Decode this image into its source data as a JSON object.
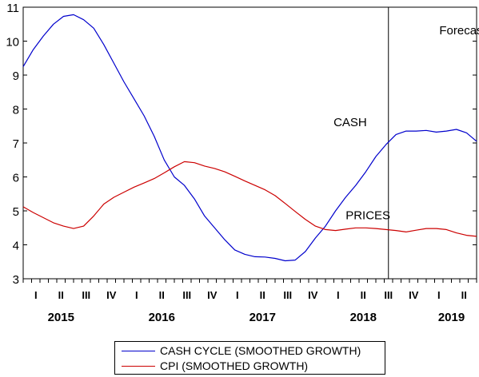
{
  "chart_data": {
    "type": "line",
    "ylim": [
      3,
      11
    ],
    "yticks": [
      3,
      4,
      5,
      6,
      7,
      8,
      9,
      10,
      11
    ],
    "x_range": [
      2015.0,
      2019.5
    ],
    "quarter_labels": [
      "I",
      "II",
      "III",
      "IV",
      "I",
      "II",
      "III",
      "IV",
      "I",
      "II",
      "III",
      "IV",
      "I",
      "II",
      "III",
      "IV",
      "I",
      "II"
    ],
    "year_labels": [
      {
        "label": "2015",
        "x": 2015.375
      },
      {
        "label": "2016",
        "x": 2016.375
      },
      {
        "label": "2017",
        "x": 2017.375
      },
      {
        "label": "2018",
        "x": 2018.375
      },
      {
        "label": "2019",
        "x": 2019.25
      }
    ],
    "forecast_start": 2018.625,
    "annotations": [
      {
        "text": "Forecast",
        "x": 2019.13,
        "y": 10.2
      },
      {
        "text": "CASH",
        "x": 2018.08,
        "y": 7.5
      },
      {
        "text": "PRICES",
        "x": 2018.2,
        "y": 4.75
      }
    ],
    "series": [
      {
        "name": "CASH CYCLE (SMOOTHED GROWTH)",
        "color": "#0000cc",
        "x": [
          2015.0,
          2015.1,
          2015.2,
          2015.3,
          2015.4,
          2015.5,
          2015.6,
          2015.7,
          2015.8,
          2015.9,
          2016.0,
          2016.1,
          2016.2,
          2016.3,
          2016.4,
          2016.5,
          2016.6,
          2016.7,
          2016.8,
          2016.9,
          2017.0,
          2017.1,
          2017.2,
          2017.3,
          2017.4,
          2017.5,
          2017.6,
          2017.7,
          2017.8,
          2017.9,
          2018.0,
          2018.1,
          2018.2,
          2018.3,
          2018.4,
          2018.5,
          2018.6,
          2018.7,
          2018.8,
          2018.9,
          2019.0,
          2019.1,
          2019.2,
          2019.3,
          2019.4,
          2019.5
        ],
        "values": [
          9.25,
          9.75,
          10.15,
          10.5,
          10.73,
          10.78,
          10.63,
          10.38,
          9.9,
          9.35,
          8.8,
          8.3,
          7.8,
          7.2,
          6.5,
          6.0,
          5.75,
          5.35,
          4.85,
          4.5,
          4.15,
          3.85,
          3.72,
          3.65,
          3.64,
          3.6,
          3.53,
          3.55,
          3.8,
          4.2,
          4.55,
          5.0,
          5.4,
          5.75,
          6.15,
          6.6,
          6.95,
          7.25,
          7.35,
          7.35,
          7.37,
          7.32,
          7.35,
          7.4,
          7.3,
          7.05
        ]
      },
      {
        "name": "CPI (SMOOTHED GROWTH)",
        "color": "#cc0000",
        "x": [
          2015.0,
          2015.1,
          2015.2,
          2015.3,
          2015.4,
          2015.5,
          2015.6,
          2015.7,
          2015.8,
          2015.9,
          2016.0,
          2016.1,
          2016.2,
          2016.3,
          2016.4,
          2016.5,
          2016.6,
          2016.7,
          2016.8,
          2016.9,
          2017.0,
          2017.1,
          2017.2,
          2017.3,
          2017.4,
          2017.5,
          2017.6,
          2017.7,
          2017.8,
          2017.9,
          2018.0,
          2018.1,
          2018.2,
          2018.3,
          2018.4,
          2018.5,
          2018.6,
          2018.7,
          2018.8,
          2018.9,
          2019.0,
          2019.1,
          2019.2,
          2019.3,
          2019.4,
          2019.5
        ],
        "values": [
          5.12,
          4.95,
          4.8,
          4.65,
          4.55,
          4.48,
          4.55,
          4.85,
          5.2,
          5.4,
          5.55,
          5.7,
          5.82,
          5.95,
          6.12,
          6.3,
          6.45,
          6.42,
          6.32,
          6.25,
          6.15,
          6.02,
          5.88,
          5.75,
          5.62,
          5.45,
          5.22,
          4.98,
          4.75,
          4.55,
          4.45,
          4.42,
          4.46,
          4.5,
          4.5,
          4.48,
          4.45,
          4.42,
          4.38,
          4.43,
          4.48,
          4.48,
          4.45,
          4.35,
          4.28,
          4.25
        ]
      }
    ]
  }
}
